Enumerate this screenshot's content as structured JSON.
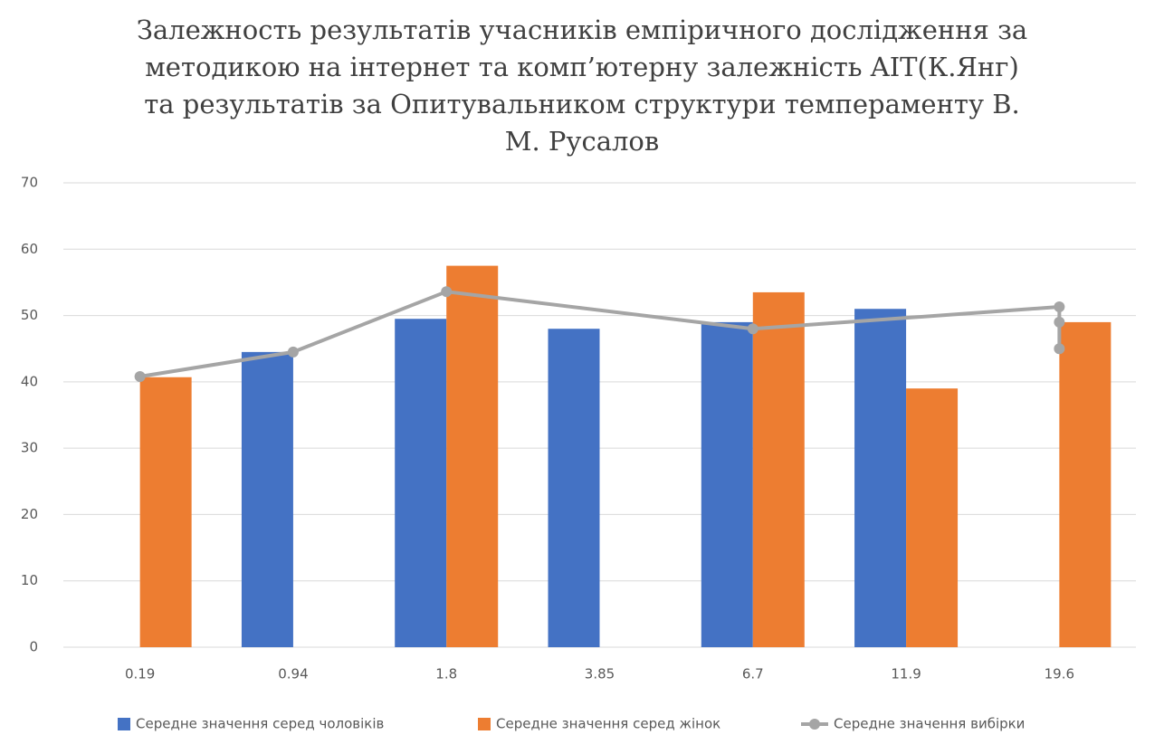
{
  "chart_data": {
    "type": "bar-line",
    "title": [
      "Залежность результатів учасників емпіричного дослідження за",
      "методикою на  інтернет та комп’ютерну залежність AIT(К.Янг)",
      "та результатів за Опитувальником структури темпераменту В.",
      "М. Русалов"
    ],
    "categories": [
      "0.19",
      "0.94",
      "1.8",
      "3.85",
      "6.7",
      "11.9",
      "19.6"
    ],
    "series": [
      {
        "name": "Середне значення серед чоловіків",
        "color": "#4472c4",
        "type": "bar",
        "values": [
          null,
          44.5,
          49.5,
          48,
          49,
          51,
          null
        ]
      },
      {
        "name": "Середне значення серед жінок",
        "color": "#ed7d31",
        "type": "bar",
        "values": [
          40.7,
          null,
          57.5,
          null,
          53.5,
          39,
          49
        ]
      },
      {
        "name": "Середне значення вибірки",
        "color": "#a5a5a5",
        "type": "line",
        "x": [
          "0.19",
          "0.94",
          "1.8",
          "6.7",
          "19.6",
          "19.6",
          "19.6"
        ],
        "values": [
          40.8,
          44.5,
          53.6,
          48,
          51.3,
          49,
          45
        ]
      }
    ],
    "ylim": [
      0,
      70
    ],
    "yticks": [
      0,
      10,
      20,
      30,
      40,
      50,
      60,
      70
    ],
    "grid": true,
    "legend": "bottom"
  }
}
